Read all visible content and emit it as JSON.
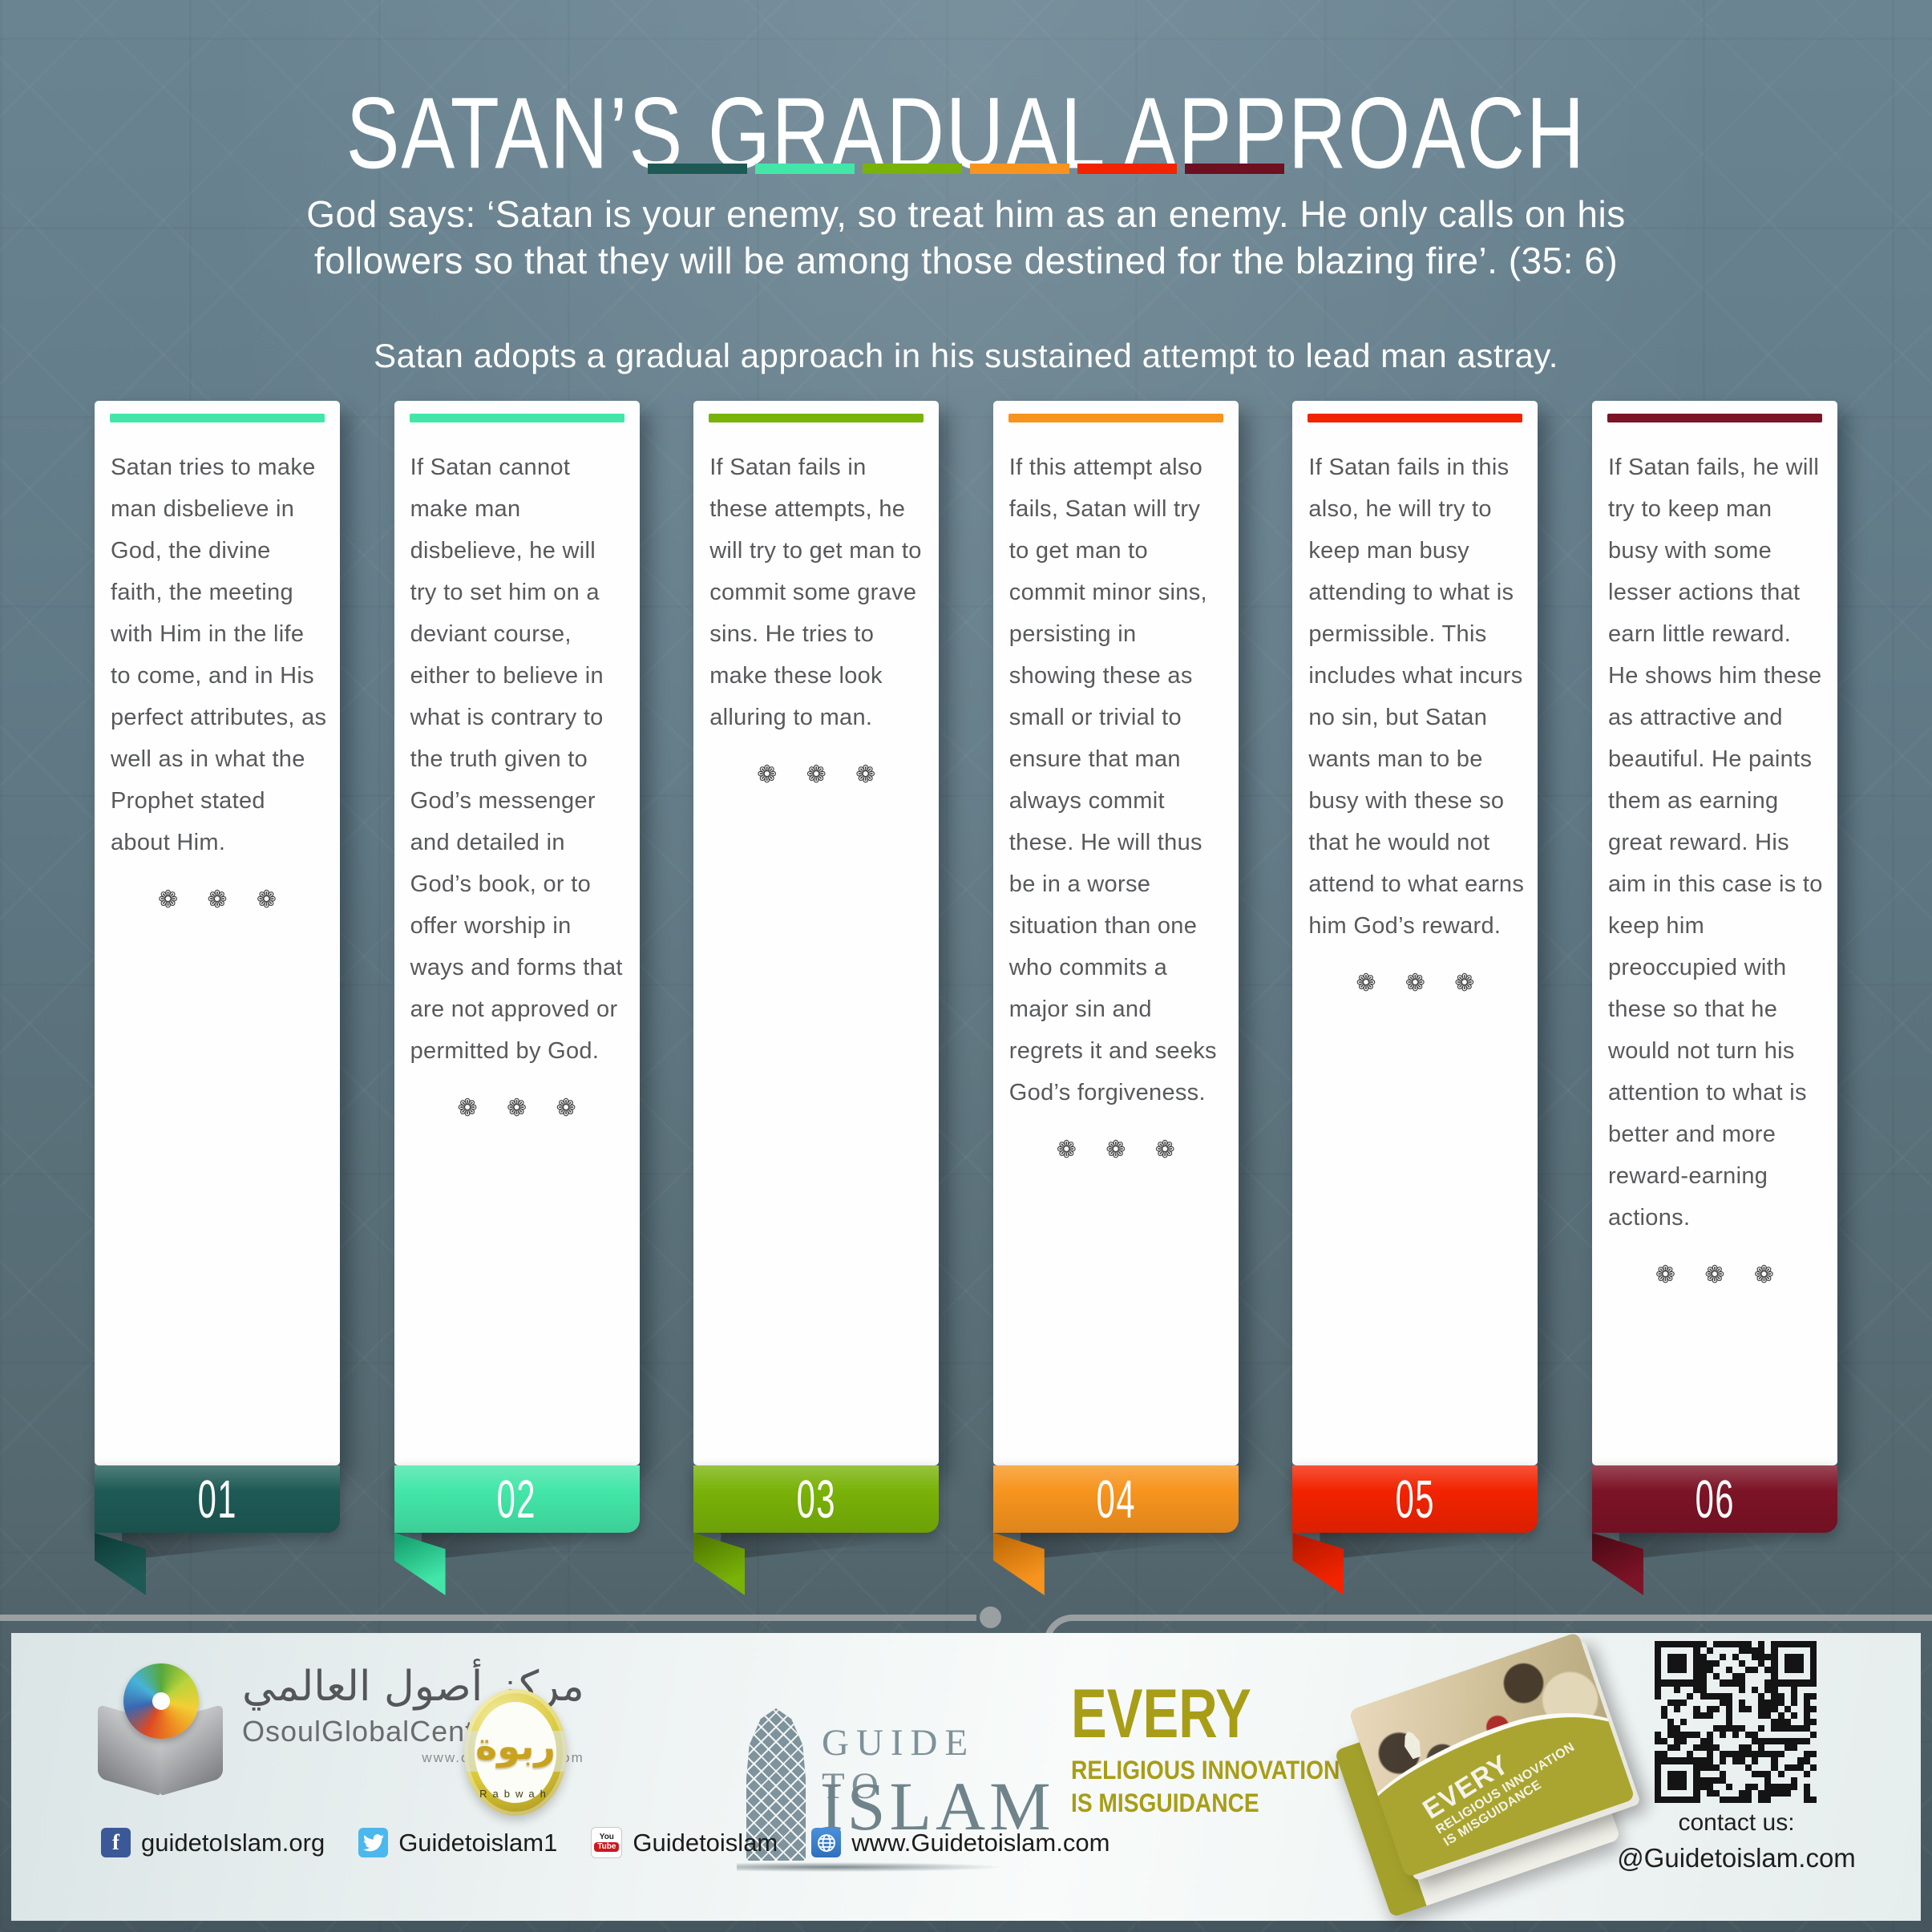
{
  "header": {
    "title": "SATAN’S GRADUAL APPROACH",
    "quote_line1": "God says: ‘Satan is your enemy, so treat him as an enemy. He only calls on his",
    "quote_line2": "followers so that they will be among those destined for the blazing fire’. (35: 6)",
    "subtitle": "Satan adopts a gradual approach in his sustained attempt to lead man astray.",
    "accent_colors": [
      "#1e5a55",
      "#43e6a8",
      "#79b208",
      "#f7941e",
      "#f22300",
      "#6d1020"
    ]
  },
  "steps": [
    {
      "number": "01",
      "color": "#1e5a55",
      "dark": "#0f3e3a",
      "bar_color": "#43e6a8",
      "ornament": "❁ ❁ ❁",
      "text": "Satan tries to make man disbelieve in God, the divine faith, the meeting with Him in the life to come, and in His perfect attributes, as well as in what the Prophet stated about Him."
    },
    {
      "number": "02",
      "color": "#43e6a8",
      "dark": "#17a371",
      "bar_color": "#43e6a8",
      "ornament": "❁ ❁ ❁",
      "text": "If Satan cannot make man disbelieve, he will try to set him on a deviant course, either to believe in what is contrary to the truth given to God’s messenger and detailed in God’s book, or to offer worship in ways and forms that are not approved or permitted by God."
    },
    {
      "number": "03",
      "color": "#79b208",
      "dark": "#527a02",
      "bar_color": "#79b208",
      "ornament": "❁ ❁ ❁",
      "text": "If Satan fails in these attempts, he will try to get man to commit some grave sins. He tries to make these look alluring to man."
    },
    {
      "number": "04",
      "color": "#f7941e",
      "dark": "#c26c08",
      "bar_color": "#f7941e",
      "ornament": "❁ ❁ ❁",
      "text": "If this attempt also fails, Satan will try to get man to commit minor sins, persisting in showing these as small or trivial to ensure that man always commit these. He will thus be in a worse situation than one who commits a major sin and regrets it and seeks God’s forgiveness."
    },
    {
      "number": "05",
      "color": "#f22300",
      "dark": "#b51900",
      "bar_color": "#f22300",
      "ornament": "❁ ❁ ❁",
      "text": "If Satan fails in this also, he will try to keep man busy attending to what is permissible. This includes what incurs no sin, but Satan wants man to be busy with these so that he would not attend to what earns him God’s reward."
    },
    {
      "number": "06",
      "color": "#7c1326",
      "dark": "#4e0a16",
      "bar_color": "#7c1326",
      "ornament": "❁ ❁ ❁",
      "text": "If Satan fails, he will try to keep man busy with some lesser actions that earn little reward. He shows him these as attractive and beautiful. He paints them as earning great reward. His aim in this case is to keep him preoccupied with these so that he would not turn his attention to what is better and more reward-earning actions."
    }
  ],
  "footer": {
    "osoul": {
      "arabic": "مركز أصول العالمي",
      "name": "OsoulGlobalCenter",
      "url": "www.osoulcenter.com"
    },
    "rabwah": {
      "arabic": "ربوة",
      "name": "Rabwah"
    },
    "guide_logo": {
      "line1": "GUIDE TO",
      "line2": "ISLAM"
    },
    "slogan": {
      "line1": "EVERY",
      "line2": "RELIGIOUS INNOVATION",
      "line3": "IS MISGUIDANCE"
    },
    "book_cover": {
      "line1": "EVERY",
      "line2": "RELIGIOUS INNOVATION",
      "line3": "IS MISGUIDANCE"
    },
    "contact": {
      "label": "contact us:",
      "handle": "@Guidetoislam.com"
    },
    "social": [
      {
        "network": "facebook",
        "label": "guidetoIslam.org"
      },
      {
        "network": "twitter",
        "label": "Guidetoislam1"
      },
      {
        "network": "youtube",
        "label": "Guidetoislam"
      },
      {
        "network": "website",
        "label": "www.Guidetoislam.com"
      }
    ]
  }
}
